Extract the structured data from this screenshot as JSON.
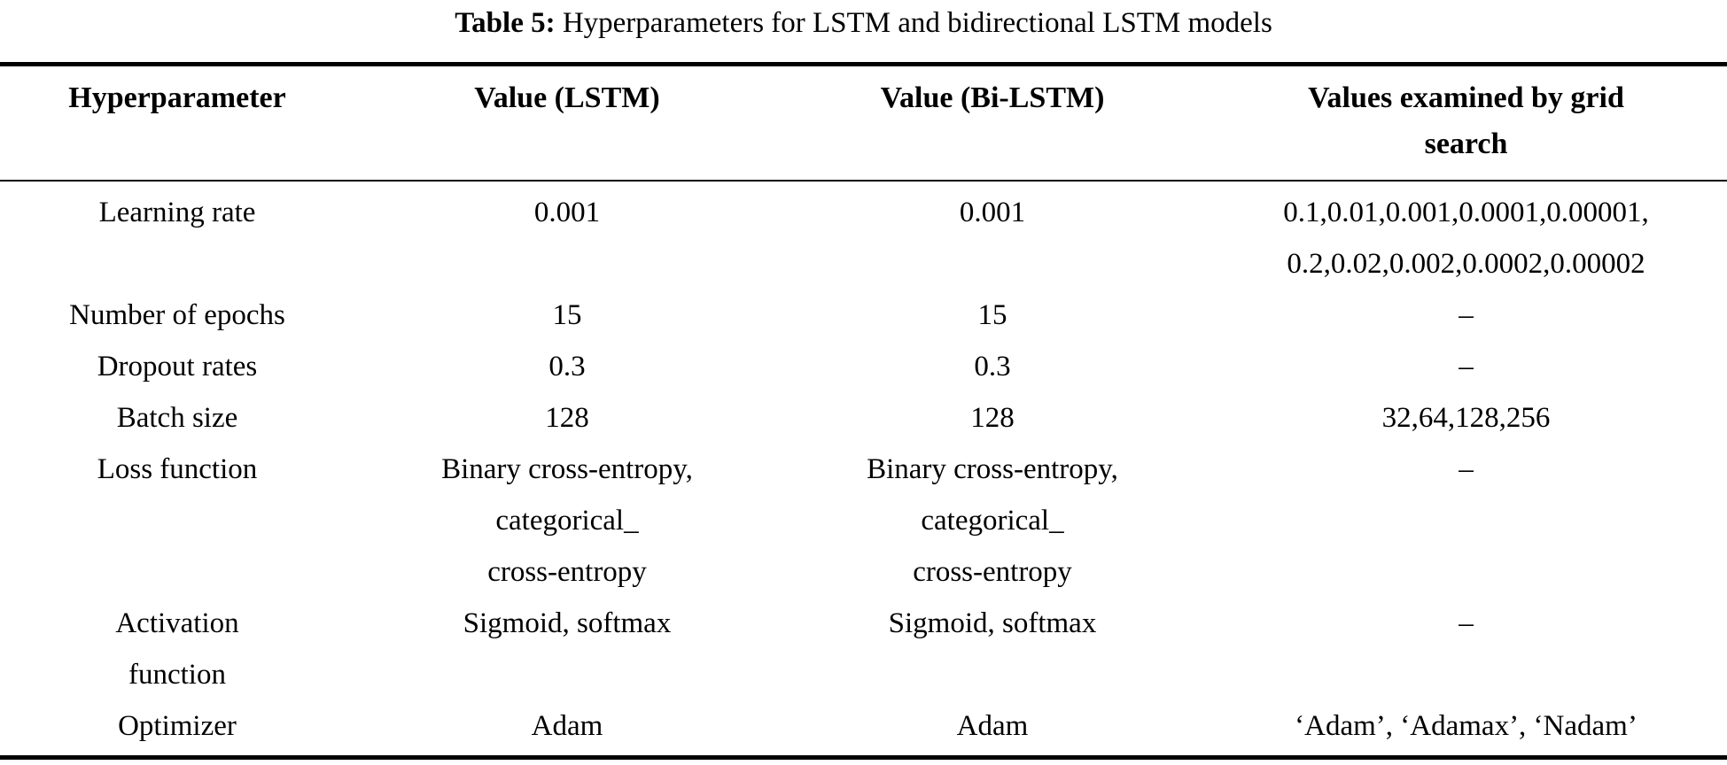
{
  "caption": {
    "label": "Table 5:",
    "text": " Hyperparameters for LSTM and bidirectional LSTM models"
  },
  "table": {
    "columns": [
      "Hyperparameter",
      "Value (LSTM)",
      "Value (Bi-LSTM)",
      "Values examined by grid\nsearch"
    ],
    "rows": [
      {
        "hyperparameter": "Learning rate",
        "lstm": "0.001",
        "bilstm": "0.001",
        "grid": "0.1,0.01,0.001,0.0001,0.00001,\n0.2,0.02,0.002,0.0002,0.00002"
      },
      {
        "hyperparameter": "Number of epochs",
        "lstm": "15",
        "bilstm": "15",
        "grid": "–"
      },
      {
        "hyperparameter": "Dropout rates",
        "lstm": "0.3",
        "bilstm": "0.3",
        "grid": "–"
      },
      {
        "hyperparameter": "Batch size",
        "lstm": "128",
        "bilstm": "128",
        "grid": "32,64,128,256"
      },
      {
        "hyperparameter": "Loss function",
        "lstm": "Binary cross-entropy,\ncategorical_\ncross-entropy",
        "bilstm": "Binary cross-entropy,\ncategorical_\ncross-entropy",
        "grid": "–"
      },
      {
        "hyperparameter": "Activation\nfunction",
        "lstm": "Sigmoid, softmax",
        "bilstm": "Sigmoid, softmax",
        "grid": "–"
      },
      {
        "hyperparameter": "Optimizer",
        "lstm": "Adam",
        "bilstm": "Adam",
        "grid": "‘Adam’, ‘Adamax’, ‘Nadam’"
      }
    ]
  }
}
